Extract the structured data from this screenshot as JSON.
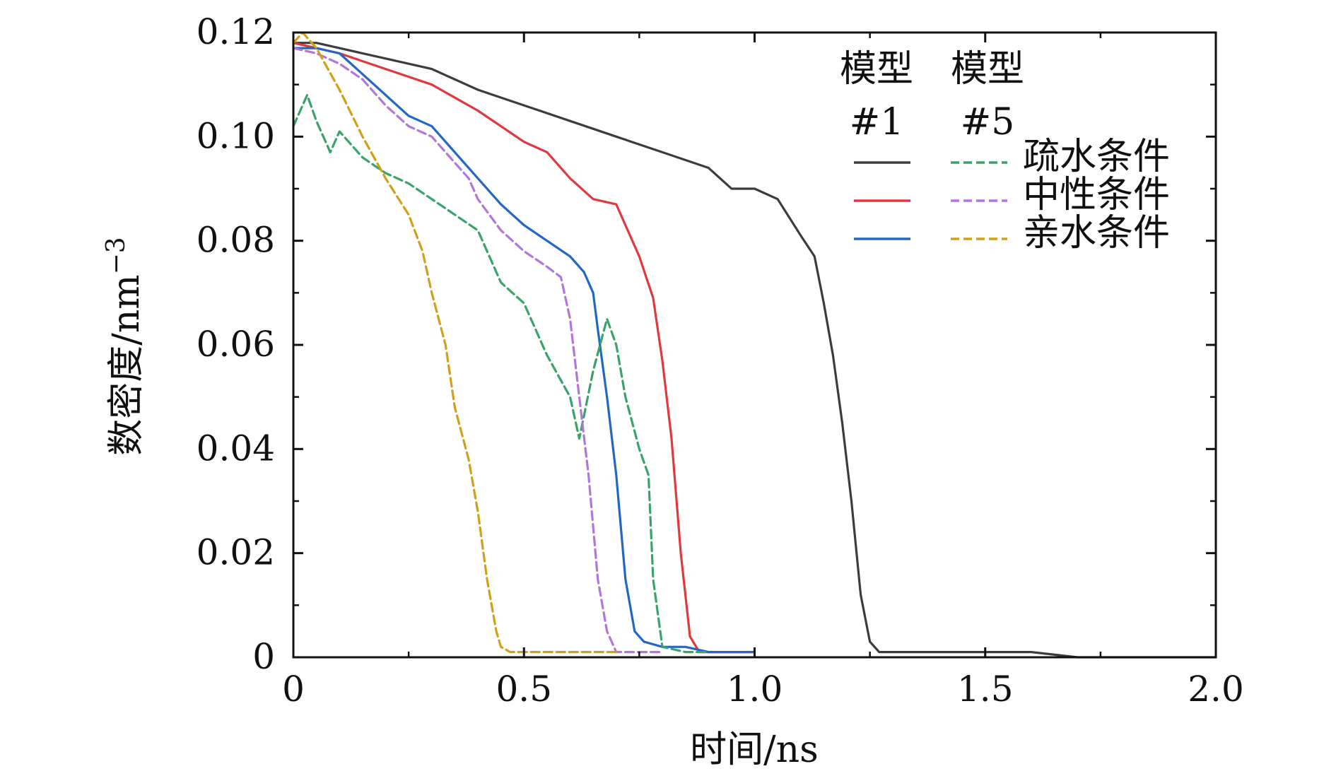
{
  "chart_data": {
    "type": "line",
    "title": "",
    "xlabel": "时间/ns",
    "ylabel": "数密度/nm",
    "ylabel_exponent": "−3",
    "xlim": [
      0,
      2.0
    ],
    "ylim": [
      0,
      0.12
    ],
    "x_ticks": [
      0,
      0.5,
      1.0,
      1.5,
      2.0
    ],
    "x_tick_labels": [
      "0",
      "0.5",
      "1.0",
      "1.5",
      "2.0"
    ],
    "y_ticks": [
      0,
      0.02,
      0.04,
      0.06,
      0.08,
      0.1,
      0.12
    ],
    "y_tick_labels": [
      "0",
      "0.02",
      "0.04",
      "0.06",
      "0.08",
      "0.10",
      "0.12"
    ],
    "grid": false,
    "legend": {
      "position": "top-right",
      "col_headers": [
        {
          "top": "模型",
          "bottom": "#1"
        },
        {
          "top": "模型",
          "bottom": "#5"
        }
      ],
      "row_labels": [
        "疏水条件",
        "中性条件",
        "亲水条件"
      ]
    },
    "series": [
      {
        "name": "模型#1 疏水条件",
        "model": "#1",
        "condition": "疏水条件",
        "color": "#3c3c3c",
        "dash": "solid",
        "x": [
          0,
          0.05,
          0.1,
          0.2,
          0.3,
          0.4,
          0.5,
          0.6,
          0.7,
          0.8,
          0.9,
          0.95,
          1.0,
          1.05,
          1.1,
          1.13,
          1.15,
          1.17,
          1.19,
          1.21,
          1.23,
          1.25,
          1.27,
          1.3,
          1.4,
          1.5,
          1.6,
          1.7,
          1.8,
          1.9,
          2.0
        ],
        "y": [
          0.118,
          0.118,
          0.117,
          0.115,
          0.113,
          0.109,
          0.106,
          0.103,
          0.1,
          0.097,
          0.094,
          0.09,
          0.09,
          0.088,
          0.081,
          0.077,
          0.068,
          0.058,
          0.045,
          0.03,
          0.012,
          0.003,
          0.001,
          0.001,
          0.001,
          0.001,
          0.001,
          0.0,
          0.0,
          0.0,
          0.0
        ]
      },
      {
        "name": "模型#1 中性条件",
        "model": "#1",
        "condition": "中性条件",
        "color": "#e0383e",
        "dash": "solid",
        "x": [
          0,
          0.05,
          0.1,
          0.2,
          0.3,
          0.4,
          0.5,
          0.55,
          0.6,
          0.65,
          0.7,
          0.72,
          0.75,
          0.78,
          0.8,
          0.82,
          0.84,
          0.86,
          0.88,
          0.9,
          0.95,
          1.0
        ],
        "y": [
          0.118,
          0.117,
          0.116,
          0.113,
          0.11,
          0.105,
          0.099,
          0.097,
          0.092,
          0.088,
          0.087,
          0.083,
          0.077,
          0.069,
          0.057,
          0.042,
          0.02,
          0.004,
          0.001,
          0.001,
          0.001,
          0.001
        ]
      },
      {
        "name": "模型#1 亲水条件",
        "model": "#1",
        "condition": "亲水条件",
        "color": "#2367c4",
        "dash": "solid",
        "x": [
          0,
          0.05,
          0.1,
          0.15,
          0.2,
          0.25,
          0.3,
          0.35,
          0.4,
          0.45,
          0.5,
          0.55,
          0.6,
          0.63,
          0.65,
          0.66,
          0.68,
          0.7,
          0.72,
          0.74,
          0.76,
          0.8,
          0.85,
          0.9,
          0.95,
          1.0
        ],
        "y": [
          0.117,
          0.117,
          0.116,
          0.112,
          0.108,
          0.104,
          0.102,
          0.097,
          0.092,
          0.087,
          0.083,
          0.08,
          0.077,
          0.074,
          0.07,
          0.063,
          0.05,
          0.035,
          0.015,
          0.005,
          0.003,
          0.002,
          0.002,
          0.001,
          0.001,
          0.001
        ]
      },
      {
        "name": "模型#5 疏水条件",
        "model": "#5",
        "condition": "疏水条件",
        "color": "#3aa36a",
        "dash": "dashed",
        "x": [
          0,
          0.03,
          0.05,
          0.08,
          0.1,
          0.15,
          0.2,
          0.25,
          0.3,
          0.35,
          0.4,
          0.45,
          0.5,
          0.55,
          0.6,
          0.62,
          0.65,
          0.68,
          0.7,
          0.72,
          0.75,
          0.77,
          0.78,
          0.8,
          0.85,
          0.9
        ],
        "y": [
          0.102,
          0.108,
          0.103,
          0.097,
          0.101,
          0.096,
          0.093,
          0.091,
          0.088,
          0.085,
          0.082,
          0.072,
          0.068,
          0.058,
          0.05,
          0.042,
          0.055,
          0.065,
          0.06,
          0.05,
          0.04,
          0.035,
          0.015,
          0.002,
          0.001,
          0.001
        ]
      },
      {
        "name": "模型#5 中性条件",
        "model": "#5",
        "condition": "中性条件",
        "color": "#b276db",
        "dash": "dashed",
        "x": [
          0,
          0.05,
          0.1,
          0.15,
          0.2,
          0.25,
          0.3,
          0.35,
          0.38,
          0.4,
          0.45,
          0.5,
          0.55,
          0.58,
          0.6,
          0.62,
          0.64,
          0.66,
          0.68,
          0.7,
          0.75,
          0.8
        ],
        "y": [
          0.117,
          0.116,
          0.114,
          0.111,
          0.106,
          0.102,
          0.1,
          0.095,
          0.092,
          0.088,
          0.082,
          0.078,
          0.075,
          0.073,
          0.065,
          0.05,
          0.035,
          0.015,
          0.005,
          0.001,
          0.001,
          0.001
        ]
      },
      {
        "name": "模型#5 亲水条件",
        "model": "#5",
        "condition": "亲水条件",
        "color": "#d0a018",
        "dash": "dashed",
        "x": [
          0,
          0.02,
          0.05,
          0.1,
          0.15,
          0.2,
          0.25,
          0.28,
          0.3,
          0.33,
          0.35,
          0.38,
          0.4,
          0.42,
          0.44,
          0.45,
          0.47,
          0.5,
          0.6,
          0.7
        ],
        "y": [
          0.118,
          0.12,
          0.117,
          0.109,
          0.1,
          0.092,
          0.085,
          0.078,
          0.07,
          0.06,
          0.048,
          0.038,
          0.028,
          0.015,
          0.005,
          0.002,
          0.001,
          0.001,
          0.001,
          0.001
        ]
      }
    ]
  }
}
